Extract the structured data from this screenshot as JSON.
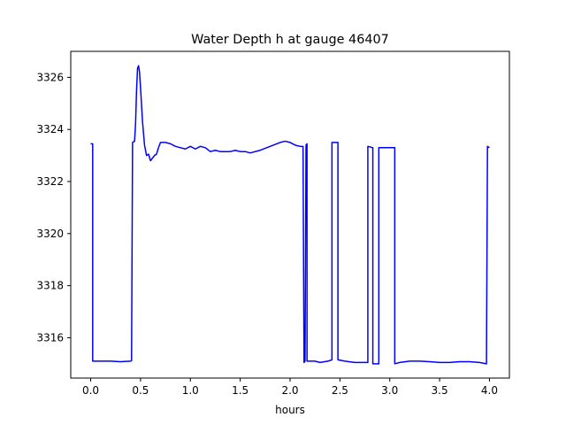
{
  "chart_data": {
    "type": "line",
    "title": "Water Depth h at gauge 46407",
    "xlabel": "hours",
    "ylabel": "",
    "xlim": [
      -0.2,
      4.2
    ],
    "ylim": [
      3314.45,
      3327.0
    ],
    "grid": false,
    "xticks": [
      0.0,
      0.5,
      1.0,
      1.5,
      2.0,
      2.5,
      3.0,
      3.5,
      4.0
    ],
    "xtick_labels": [
      "0.0",
      "0.5",
      "1.0",
      "1.5",
      "2.0",
      "2.5",
      "3.0",
      "3.5",
      "4.0"
    ],
    "yticks": [
      3316,
      3318,
      3320,
      3322,
      3324,
      3326
    ],
    "ytick_labels": [
      "3316",
      "3318",
      "3320",
      "3322",
      "3324",
      "3326"
    ],
    "series": [
      {
        "name": "",
        "color": "#0000ff",
        "points": [
          [
            0.0,
            3323.45
          ],
          [
            0.02,
            3323.45
          ],
          [
            0.02,
            3315.1
          ],
          [
            0.1,
            3315.1
          ],
          [
            0.2,
            3315.1
          ],
          [
            0.3,
            3315.08
          ],
          [
            0.4,
            3315.1
          ],
          [
            0.41,
            3315.12
          ],
          [
            0.42,
            3323.5
          ],
          [
            0.44,
            3323.55
          ],
          [
            0.45,
            3324.2
          ],
          [
            0.46,
            3325.5
          ],
          [
            0.47,
            3326.35
          ],
          [
            0.48,
            3326.45
          ],
          [
            0.49,
            3326.2
          ],
          [
            0.5,
            3325.6
          ],
          [
            0.52,
            3324.3
          ],
          [
            0.54,
            3323.4
          ],
          [
            0.56,
            3323.0
          ],
          [
            0.58,
            3323.05
          ],
          [
            0.6,
            3322.8
          ],
          [
            0.62,
            3322.9
          ],
          [
            0.64,
            3323.0
          ],
          [
            0.66,
            3323.05
          ],
          [
            0.68,
            3323.3
          ],
          [
            0.7,
            3323.5
          ],
          [
            0.75,
            3323.5
          ],
          [
            0.8,
            3323.45
          ],
          [
            0.85,
            3323.35
          ],
          [
            0.9,
            3323.3
          ],
          [
            0.95,
            3323.25
          ],
          [
            1.0,
            3323.35
          ],
          [
            1.05,
            3323.25
          ],
          [
            1.1,
            3323.35
          ],
          [
            1.15,
            3323.3
          ],
          [
            1.2,
            3323.15
          ],
          [
            1.25,
            3323.2
          ],
          [
            1.3,
            3323.15
          ],
          [
            1.4,
            3323.15
          ],
          [
            1.45,
            3323.2
          ],
          [
            1.5,
            3323.15
          ],
          [
            1.55,
            3323.15
          ],
          [
            1.6,
            3323.1
          ],
          [
            1.7,
            3323.2
          ],
          [
            1.8,
            3323.35
          ],
          [
            1.9,
            3323.5
          ],
          [
            1.95,
            3323.55
          ],
          [
            2.0,
            3323.5
          ],
          [
            2.05,
            3323.4
          ],
          [
            2.1,
            3323.35
          ],
          [
            2.13,
            3323.35
          ],
          [
            2.14,
            3315.05
          ],
          [
            2.15,
            3315.1
          ],
          [
            2.16,
            3323.4
          ],
          [
            2.17,
            3323.45
          ],
          [
            2.17,
            3315.1
          ],
          [
            2.25,
            3315.1
          ],
          [
            2.3,
            3315.05
          ],
          [
            2.38,
            3315.1
          ],
          [
            2.42,
            3315.15
          ],
          [
            2.42,
            3323.5
          ],
          [
            2.48,
            3323.5
          ],
          [
            2.48,
            3315.15
          ],
          [
            2.55,
            3315.1
          ],
          [
            2.65,
            3315.05
          ],
          [
            2.78,
            3315.05
          ],
          [
            2.78,
            3323.35
          ],
          [
            2.83,
            3323.3
          ],
          [
            2.83,
            3315.0
          ],
          [
            2.89,
            3315.0
          ],
          [
            2.89,
            3323.3
          ],
          [
            3.0,
            3323.3
          ],
          [
            3.04,
            3323.3
          ],
          [
            3.05,
            3323.3
          ],
          [
            3.05,
            3315.0
          ],
          [
            3.1,
            3315.05
          ],
          [
            3.2,
            3315.1
          ],
          [
            3.3,
            3315.1
          ],
          [
            3.4,
            3315.08
          ],
          [
            3.5,
            3315.05
          ],
          [
            3.6,
            3315.05
          ],
          [
            3.7,
            3315.08
          ],
          [
            3.8,
            3315.08
          ],
          [
            3.9,
            3315.05
          ],
          [
            3.97,
            3315.0
          ],
          [
            3.98,
            3323.35
          ],
          [
            4.0,
            3323.3
          ]
        ]
      }
    ]
  }
}
